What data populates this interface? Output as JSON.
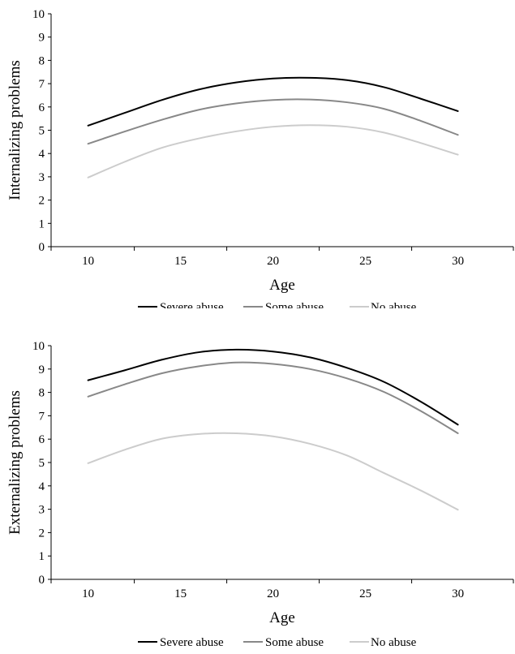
{
  "chart_data": [
    {
      "type": "line",
      "title": "",
      "xlabel": "Age",
      "ylabel": "Internalizing problems",
      "xlim": [
        8,
        33
      ],
      "ylim": [
        0,
        10
      ],
      "x_ticks": [
        10,
        15,
        20,
        25,
        30
      ],
      "y_ticks": [
        0,
        1,
        2,
        3,
        4,
        5,
        6,
        7,
        8,
        9,
        10
      ],
      "grid": false,
      "legend_position": "bottom",
      "series": [
        {
          "name": "Severe abuse",
          "color": "#000000",
          "x": [
            10,
            12,
            14,
            16,
            18,
            20,
            22,
            24,
            26,
            28,
            30
          ],
          "values": [
            5.2,
            5.75,
            6.3,
            6.75,
            7.05,
            7.22,
            7.25,
            7.15,
            6.85,
            6.35,
            5.82
          ]
        },
        {
          "name": "Some abuse",
          "color": "#888888",
          "x": [
            10,
            12,
            14,
            16,
            18,
            20,
            22,
            24,
            26,
            28,
            30
          ],
          "values": [
            4.42,
            4.95,
            5.45,
            5.88,
            6.15,
            6.3,
            6.32,
            6.2,
            5.92,
            5.4,
            4.8
          ]
        },
        {
          "name": "No abuse",
          "color": "#cccccc",
          "x": [
            10,
            12,
            14,
            16,
            18,
            20,
            22,
            24,
            26,
            28,
            30
          ],
          "values": [
            2.97,
            3.65,
            4.25,
            4.65,
            4.95,
            5.15,
            5.22,
            5.15,
            4.9,
            4.45,
            3.95
          ]
        }
      ]
    },
    {
      "type": "line",
      "title": "",
      "xlabel": "Age",
      "ylabel": "Externalizing problems",
      "xlim": [
        8,
        33
      ],
      "ylim": [
        0,
        10
      ],
      "x_ticks": [
        10,
        15,
        20,
        25,
        30
      ],
      "y_ticks": [
        0,
        1,
        2,
        3,
        4,
        5,
        6,
        7,
        8,
        9,
        10
      ],
      "grid": false,
      "legend_position": "bottom",
      "series": [
        {
          "name": "Severe abuse",
          "color": "#000000",
          "x": [
            10,
            12,
            14,
            16,
            18,
            20,
            22,
            24,
            26,
            28,
            30
          ],
          "values": [
            8.52,
            8.95,
            9.4,
            9.72,
            9.83,
            9.75,
            9.5,
            9.05,
            8.45,
            7.6,
            6.62
          ]
        },
        {
          "name": "Some abuse",
          "color": "#888888",
          "x": [
            10,
            12,
            14,
            16,
            18,
            20,
            22,
            24,
            26,
            28,
            30
          ],
          "values": [
            7.82,
            8.35,
            8.82,
            9.12,
            9.28,
            9.22,
            9.0,
            8.6,
            8.02,
            7.2,
            6.25
          ]
        },
        {
          "name": "No abuse",
          "color": "#cccccc",
          "x": [
            10,
            12,
            14,
            16,
            18,
            20,
            22,
            24,
            26,
            28,
            30
          ],
          "values": [
            4.97,
            5.55,
            6.02,
            6.22,
            6.25,
            6.12,
            5.8,
            5.3,
            4.55,
            3.8,
            2.98
          ]
        }
      ]
    }
  ]
}
